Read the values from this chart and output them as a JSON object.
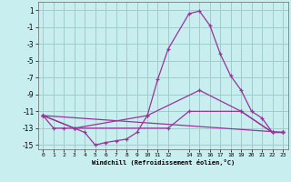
{
  "xlabel": "Windchill (Refroidissement éolien,°C)",
  "bg_color": "#c8eef0",
  "grid_color": "#a0cccc",
  "line_color": "#993399",
  "xlim": [
    -0.5,
    23.5
  ],
  "ylim": [
    -15.5,
    2.0
  ],
  "xticks": [
    0,
    1,
    2,
    3,
    4,
    5,
    6,
    7,
    8,
    9,
    10,
    11,
    12,
    14,
    15,
    16,
    17,
    18,
    19,
    20,
    21,
    22,
    23
  ],
  "yticks": [
    1,
    -1,
    -3,
    -5,
    -7,
    -9,
    -11,
    -13,
    -15
  ],
  "curves": [
    {
      "x": [
        0,
        1,
        2,
        3,
        4,
        5,
        6,
        7,
        8,
        9,
        10,
        11,
        12,
        14,
        15,
        16,
        17,
        18,
        19,
        20,
        21,
        22,
        23
      ],
      "y": [
        -11.5,
        -13,
        -13,
        -13,
        -13.5,
        -15,
        -14.7,
        -14.5,
        -14.3,
        -13.5,
        -11.5,
        -7.2,
        -3.6,
        0.6,
        0.9,
        -0.8,
        -4.2,
        -6.8,
        -8.5,
        -11.0,
        -11.8,
        -13.5,
        -13.5
      ]
    },
    {
      "x": [
        0,
        3,
        10,
        15,
        19,
        22,
        23
      ],
      "y": [
        -11.5,
        -13,
        -11.5,
        -8.5,
        -11.0,
        -13.5,
        -13.5
      ]
    },
    {
      "x": [
        0,
        3,
        12,
        14,
        19,
        22,
        23
      ],
      "y": [
        -11.5,
        -13,
        -13.0,
        -11.0,
        -11.0,
        -13.5,
        -13.5
      ]
    },
    {
      "x": [
        0,
        23
      ],
      "y": [
        -11.5,
        -13.5
      ]
    }
  ]
}
